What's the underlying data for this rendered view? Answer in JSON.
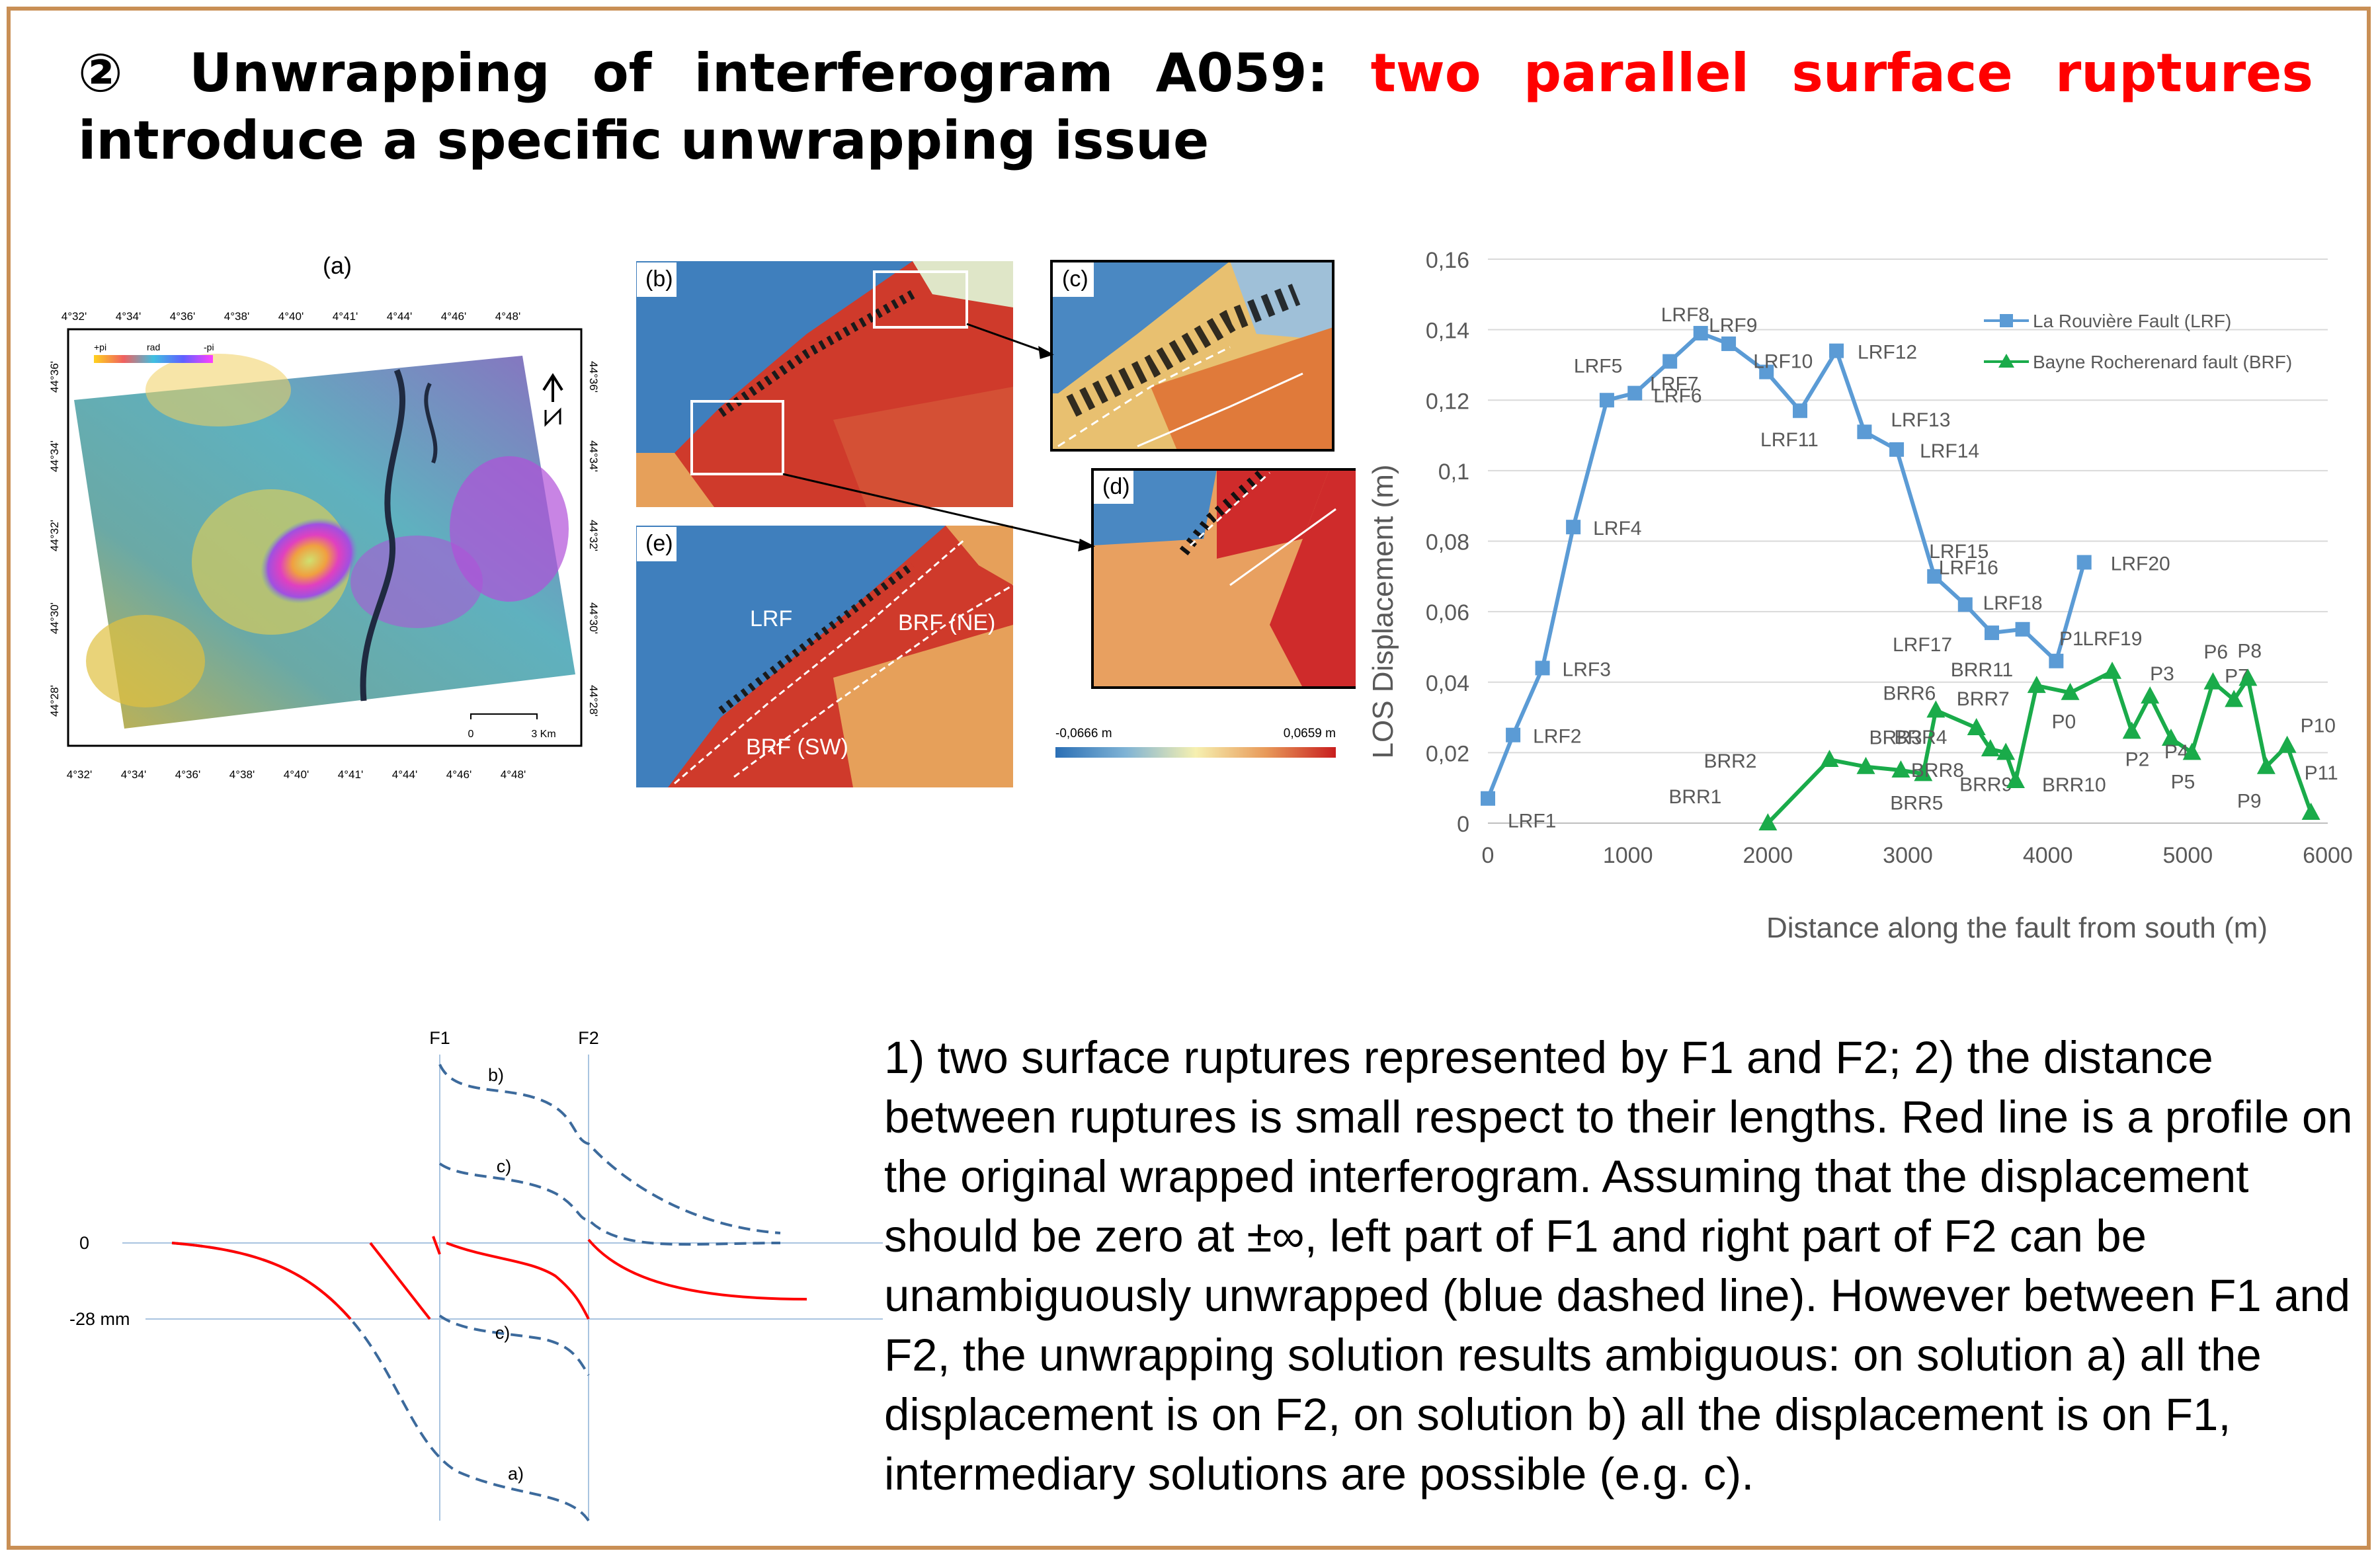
{
  "title": {
    "number": "②",
    "main": "Unwrapping of interferogram A059:",
    "highlight": "two parallel surface ruptures",
    "rest": "introduce a specific unwrapping issue"
  },
  "colors": {
    "frame": "#c98f55",
    "highlight": "#ff0000",
    "lrf_series": "#5b9bd5",
    "brf_series": "#1aab4a",
    "dashed_profile": "#3c6a9c",
    "wrapped_profile": "#ff0000"
  },
  "map_a": {
    "panel_label": "(a)",
    "top_ticks": [
      "4°32'",
      "4°34'",
      "4°36'",
      "4°38'",
      "4°40'",
      "4°41'",
      "4°44'",
      "4°46'",
      "4°48'"
    ],
    "bottom_ticks": [
      "4°32'",
      "4°34'",
      "4°36'",
      "4°38'",
      "4°40'",
      "4°41'",
      "4°44'",
      "4°46'",
      "4°48'"
    ],
    "left_ticks": [
      "44°36'",
      "44°34'",
      "44°32'",
      "44°30'",
      "44°28'"
    ],
    "right_ticks": [
      "44°36'",
      "44°34'",
      "44°32'",
      "44°30'",
      "44°28'"
    ],
    "colorbar_labels": [
      "+pi",
      "rad",
      "-pi"
    ],
    "scale_labels": [
      "0",
      "3 Km"
    ],
    "north_icon": "north-arrow-icon"
  },
  "panels_bcde": {
    "label_b": "(b)",
    "label_c": "(c)",
    "label_d": "(d)",
    "label_e": "(e)",
    "fault_lrf": "LRF",
    "fault_brf_ne": "BRF (NE)",
    "fault_brf_sw": "BRF (SW)",
    "colorbar_min": "-0,0666 m",
    "colorbar_max": "0,0659 m"
  },
  "chart_data": {
    "type": "line",
    "title": "",
    "xlabel": "Distance along the fault from south (m)",
    "ylabel": "LOS Displacement  (m)",
    "xlim": [
      0,
      6000
    ],
    "ylim": [
      0,
      0.16
    ],
    "x_ticks": [
      0,
      1000,
      2000,
      3000,
      4000,
      5000,
      6000
    ],
    "x_tick_labels": [
      "0",
      "1000",
      "2000",
      "3000",
      "4000",
      "5000",
      "6000"
    ],
    "y_ticks": [
      0,
      0.02,
      0.04,
      0.06,
      0.08,
      0.1,
      0.12,
      0.14,
      0.16
    ],
    "y_tick_labels": [
      "0",
      "0,02",
      "0,04",
      "0,06",
      "0,08",
      "0,1",
      "0,12",
      "0,14",
      "0,16"
    ],
    "grid": "horizontal",
    "legend_position": "top-right",
    "series": [
      {
        "name": "La Rouvière Fault (LRF)",
        "color": "#5b9bd5",
        "marker": "square",
        "points": [
          {
            "label": "LRF1",
            "x": 0,
            "y": 0.007
          },
          {
            "label": "LRF2",
            "x": 180,
            "y": 0.025
          },
          {
            "label": "LRF3",
            "x": 390,
            "y": 0.044
          },
          {
            "label": "LRF4",
            "x": 610,
            "y": 0.084
          },
          {
            "label": "LRF5",
            "x": 850,
            "y": 0.12
          },
          {
            "label": "LRF6",
            "x": 1050,
            "y": 0.122
          },
          {
            "label": "LRF7",
            "x": 1300,
            "y": 0.131
          },
          {
            "label": "LRF8",
            "x": 1520,
            "y": 0.139
          },
          {
            "label": "LRF9",
            "x": 1720,
            "y": 0.136
          },
          {
            "label": "LRF10",
            "x": 1990,
            "y": 0.128
          },
          {
            "label": "LRF11",
            "x": 2230,
            "y": 0.117
          },
          {
            "label": "LRF12",
            "x": 2490,
            "y": 0.134
          },
          {
            "label": "LRF13",
            "x": 2690,
            "y": 0.111
          },
          {
            "label": "LRF14",
            "x": 2920,
            "y": 0.106
          },
          {
            "label": "LRF15",
            "x": 3190,
            "y": 0.07
          },
          {
            "label": "LRF16",
            "x": 3410,
            "y": 0.062
          },
          {
            "label": "LRF17",
            "x": 3600,
            "y": 0.054
          },
          {
            "label": "LRF18",
            "x": 3820,
            "y": 0.055
          },
          {
            "label": "LRF19",
            "x": 4060,
            "y": 0.046
          },
          {
            "label": "LRF20",
            "x": 4260,
            "y": 0.074
          }
        ]
      },
      {
        "name": "Bayne Rocherenard fault (BRF)",
        "color": "#1aab4a",
        "marker": "triangle",
        "points": [
          {
            "label": "BRR1",
            "x": 2000,
            "y": 0.0
          },
          {
            "label": "BRR2",
            "x": 2440,
            "y": 0.018
          },
          {
            "label": "BRR3",
            "x": 2700,
            "y": 0.016
          },
          {
            "label": "BRR4",
            "x": 2950,
            "y": 0.015
          },
          {
            "label": "BRR5",
            "x": 3110,
            "y": 0.014
          },
          {
            "label": "BRR6",
            "x": 3200,
            "y": 0.032
          },
          {
            "label": "BRR7",
            "x": 3490,
            "y": 0.027
          },
          {
            "label": "BRR8",
            "x": 3590,
            "y": 0.021
          },
          {
            "label": "BRR9",
            "x": 3700,
            "y": 0.02
          },
          {
            "label": "BRR10",
            "x": 3770,
            "y": 0.012
          },
          {
            "label": "BRR11",
            "x": 3920,
            "y": 0.039
          },
          {
            "label": "P0",
            "x": 4160,
            "y": 0.037
          },
          {
            "label": "P1",
            "x": 4460,
            "y": 0.043
          },
          {
            "label": "P2",
            "x": 4600,
            "y": 0.026
          },
          {
            "label": "P3",
            "x": 4730,
            "y": 0.036
          },
          {
            "label": "P4",
            "x": 4880,
            "y": 0.024
          },
          {
            "label": "P5",
            "x": 5030,
            "y": 0.02
          },
          {
            "label": "P6",
            "x": 5180,
            "y": 0.04
          },
          {
            "label": "P7",
            "x": 5330,
            "y": 0.035
          },
          {
            "label": "P8",
            "x": 5430,
            "y": 0.041
          },
          {
            "label": "P9",
            "x": 5560,
            "y": 0.016
          },
          {
            "label": "P10",
            "x": 5710,
            "y": 0.022
          },
          {
            "label": "P11",
            "x": 5880,
            "y": 0.003
          }
        ]
      }
    ]
  },
  "profile_diagram": {
    "f1_label": "F1",
    "f2_label": "F2",
    "zero_label": "0",
    "minus28_label": "-28 mm",
    "label_b": "b)",
    "label_c_upper": "c)",
    "label_c_lower": "c)",
    "label_a": "a)"
  },
  "description": "1) two surface ruptures represented by F1 and F2; 2) the distance between ruptures is small respect to their lengths. Red line is a profile on the original wrapped interferogram. Assuming that the displacement should be zero at ±∞, left part of F1 and right part of F2 can be unambiguously unwrapped (blue dashed line). However between F1 and F2, the unwrapping solution results ambiguous: on solution a) all the displacement is on F2, on solution b) all the displacement is on F1, intermediary solutions are possible (e.g. c)."
}
